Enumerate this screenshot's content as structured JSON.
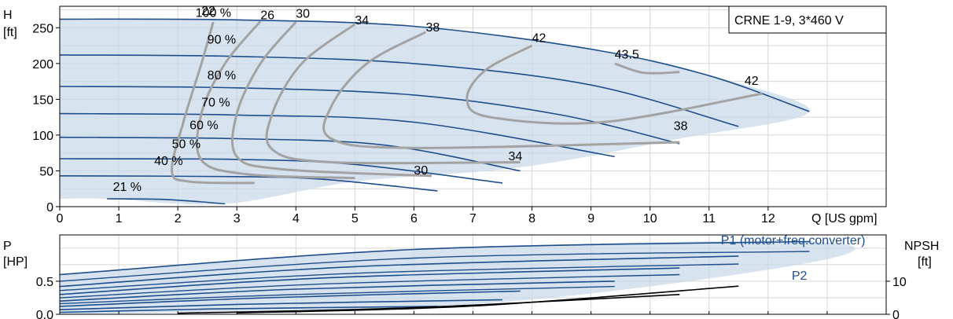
{
  "chart_data": [
    {
      "type": "line",
      "model_label": "CRNE 1-9, 3*460 V",
      "ylabel_sym": "H",
      "ylabel_unit": "[ft]",
      "xlabel": "Q [US gpm]",
      "xlim": [
        0,
        14
      ],
      "ylim": [
        0,
        280
      ],
      "x_ticks": [
        "0",
        "1",
        "2",
        "3",
        "4",
        "5",
        "6",
        "7",
        "8",
        "9",
        "10",
        "11",
        "12"
      ],
      "y_ticks": [
        {
          "v": 0,
          "t": "0"
        },
        {
          "v": 50,
          "t": "50"
        },
        {
          "v": 100,
          "t": "100"
        },
        {
          "v": 150,
          "t": "150"
        },
        {
          "v": 200,
          "t": "200"
        },
        {
          "v": 250,
          "t": "250"
        }
      ],
      "head_curves": [
        {
          "pct": "100 %",
          "label_xy": [
            2.3,
            265
          ],
          "points": [
            [
              0,
              262
            ],
            [
              3,
              261
            ],
            [
              6,
              252
            ],
            [
              9,
              220
            ],
            [
              11,
              183
            ],
            [
              12.7,
              133
            ]
          ]
        },
        {
          "pct": "90 %",
          "label_xy": [
            2.5,
            228
          ],
          "points": [
            [
              0,
              212
            ],
            [
              3,
              210
            ],
            [
              6,
              200
            ],
            [
              9,
              170
            ],
            [
              11.5,
              112
            ]
          ]
        },
        {
          "pct": "80 %",
          "label_xy": [
            2.5,
            178
          ],
          "points": [
            [
              0,
              168
            ],
            [
              3,
              166
            ],
            [
              6,
              156
            ],
            [
              8.5,
              128
            ],
            [
              10.5,
              88
            ]
          ]
        },
        {
          "pct": "70 %",
          "label_xy": [
            2.4,
            140
          ],
          "points": [
            [
              0,
              130
            ],
            [
              3,
              128
            ],
            [
              6,
              118
            ],
            [
              9.4,
              70
            ]
          ]
        },
        {
          "pct": "60 %",
          "label_xy": [
            2.2,
            108
          ],
          "points": [
            [
              0,
              97
            ],
            [
              3,
              95
            ],
            [
              5.5,
              86
            ],
            [
              7.8,
              50
            ]
          ]
        },
        {
          "pct": "50 %",
          "label_xy": [
            1.9,
            82
          ],
          "points": [
            [
              0,
              67
            ],
            [
              3,
              66
            ],
            [
              5,
              59
            ],
            [
              7.5,
              33
            ]
          ]
        },
        {
          "pct": "40 %",
          "label_xy": [
            1.6,
            58
          ],
          "points": [
            [
              0,
              43
            ],
            [
              3,
              42
            ],
            [
              4.5,
              38
            ],
            [
              6.4,
              22
            ]
          ]
        },
        {
          "pct": "21 %",
          "label_xy": [
            0.9,
            22
          ],
          "points": [
            [
              0.8,
              11
            ],
            [
              1.8,
              10
            ],
            [
              2.8,
              4
            ]
          ]
        }
      ],
      "efficiency_curves": [
        {
          "label": "22",
          "label_xy": [
            2.4,
            268
          ],
          "points": [
            [
              2.6,
              258
            ],
            [
              2.4,
              200
            ],
            [
              2.1,
              120
            ],
            [
              1.9,
              50
            ],
            [
              2.2,
              35
            ],
            [
              3.3,
              33
            ]
          ]
        },
        {
          "label": "26",
          "label_xy": [
            3.4,
            262
          ],
          "points": [
            [
              3.4,
              259
            ],
            [
              2.8,
              200
            ],
            [
              2.4,
              130
            ],
            [
              2.4,
              65
            ],
            [
              3.2,
              45
            ],
            [
              5.0,
              40
            ]
          ]
        },
        {
          "label": "30",
          "label_xy": [
            4.0,
            264
          ],
          "points": [
            [
              4.0,
              258
            ],
            [
              3.4,
              200
            ],
            [
              3.0,
              130
            ],
            [
              3.0,
              70
            ],
            [
              3.8,
              52
            ],
            [
              6.3,
              43
            ]
          ]
        },
        {
          "label": "34",
          "label_xy": [
            5.0,
            255
          ],
          "points": [
            [
              5.0,
              255
            ],
            [
              4.1,
              200
            ],
            [
              3.6,
              130
            ],
            [
              3.6,
              80
            ],
            [
              4.6,
              62
            ],
            [
              7.8,
              62
            ]
          ]
        },
        {
          "label": "38",
          "label_xy": [
            6.2,
            245
          ],
          "points": [
            [
              6.2,
              244
            ],
            [
              5.2,
              200
            ],
            [
              4.6,
              140
            ],
            [
              4.6,
              95
            ],
            [
              6.0,
              82
            ],
            [
              10.5,
              90
            ]
          ]
        },
        {
          "label": "42",
          "label_xy": [
            8.0,
            230
          ],
          "points": [
            [
              8.0,
              225
            ],
            [
              7.2,
              190
            ],
            [
              6.9,
              150
            ],
            [
              7.3,
              125
            ],
            [
              9.2,
              118
            ],
            [
              11.9,
              158
            ]
          ]
        },
        {
          "label": "43.5",
          "label_xy": [
            9.4,
            207
          ],
          "points": [
            [
              9.4,
              200
            ],
            [
              9.9,
              187
            ],
            [
              10.5,
              188
            ]
          ]
        }
      ],
      "eff_labels_lower": [
        {
          "t": "30",
          "xy": [
            6.0,
            45
          ]
        },
        {
          "t": "34",
          "xy": [
            7.6,
            65
          ]
        },
        {
          "t": "38",
          "xy": [
            10.4,
            107
          ]
        },
        {
          "t": "42",
          "xy": [
            11.6,
            170
          ]
        }
      ],
      "shaded_region": [
        [
          0,
          262
        ],
        [
          3,
          261
        ],
        [
          6,
          252
        ],
        [
          9,
          220
        ],
        [
          11,
          183
        ],
        [
          12.7,
          133
        ],
        [
          10.5,
          95
        ],
        [
          7.8,
          55
        ],
        [
          5,
          35
        ],
        [
          2.8,
          4
        ],
        [
          0.8,
          11
        ],
        [
          0,
          11
        ]
      ]
    },
    {
      "type": "line",
      "ylabel_sym": "P",
      "ylabel_unit": "[HP]",
      "y2label_sym": "NPSH",
      "y2label_unit": "[ft]",
      "xlim": [
        0,
        14
      ],
      "ylim": [
        0,
        1.2
      ],
      "y2lim": [
        0,
        24
      ],
      "y_ticks": [
        {
          "v": 0,
          "t": "0.0"
        },
        {
          "v": 0.5,
          "t": "0.5"
        }
      ],
      "y2_ticks": [
        {
          "v": 0,
          "t": "0"
        },
        {
          "v": 10,
          "t": "10"
        }
      ],
      "series_labels": [
        {
          "t": "P1 (motor+freq.converter)",
          "xy": [
            11.2,
            1.06
          ]
        },
        {
          "t": "P2",
          "xy": [
            12.4,
            0.52
          ]
        }
      ],
      "p1_curves": [
        {
          "points": [
            [
              0,
              0.6
            ],
            [
              6,
              0.98
            ],
            [
              12.7,
              1.1
            ]
          ]
        },
        {
          "points": [
            [
              0,
              0.42
            ],
            [
              5,
              0.72
            ],
            [
              11.5,
              0.88
            ]
          ]
        },
        {
          "points": [
            [
              0,
              0.3
            ],
            [
              4.5,
              0.55
            ],
            [
              10.5,
              0.7
            ]
          ]
        },
        {
          "points": [
            [
              0,
              0.2
            ],
            [
              4,
              0.38
            ],
            [
              9.4,
              0.5
            ]
          ]
        },
        {
          "points": [
            [
              0,
              0.12
            ],
            [
              3.5,
              0.25
            ],
            [
              7.8,
              0.35
            ]
          ]
        },
        {
          "points": [
            [
              0,
              0.07
            ],
            [
              3,
              0.15
            ],
            [
              7.5,
              0.22
            ]
          ]
        },
        {
          "points": [
            [
              0,
              0.03
            ],
            [
              2.5,
              0.08
            ],
            [
              6.4,
              0.12
            ]
          ]
        }
      ],
      "p2_curves": [
        {
          "points": [
            [
              0,
              0.5
            ],
            [
              6,
              0.85
            ],
            [
              12.7,
              0.95
            ]
          ]
        },
        {
          "points": [
            [
              0,
              0.36
            ],
            [
              5,
              0.62
            ],
            [
              11.5,
              0.76
            ]
          ]
        },
        {
          "points": [
            [
              0,
              0.25
            ],
            [
              4.5,
              0.46
            ],
            [
              10.5,
              0.6
            ]
          ]
        },
        {
          "points": [
            [
              0,
              0.16
            ],
            [
              4,
              0.3
            ],
            [
              9.4,
              0.42
            ]
          ]
        }
      ],
      "npsh_curves": [
        {
          "points": [
            [
              3,
              0.4
            ],
            [
              7,
              2.5
            ],
            [
              11.5,
              8.5
            ]
          ]
        },
        {
          "points": [
            [
              2,
              0.3
            ],
            [
              6,
              2
            ],
            [
              10.5,
              6
            ]
          ]
        }
      ]
    }
  ]
}
